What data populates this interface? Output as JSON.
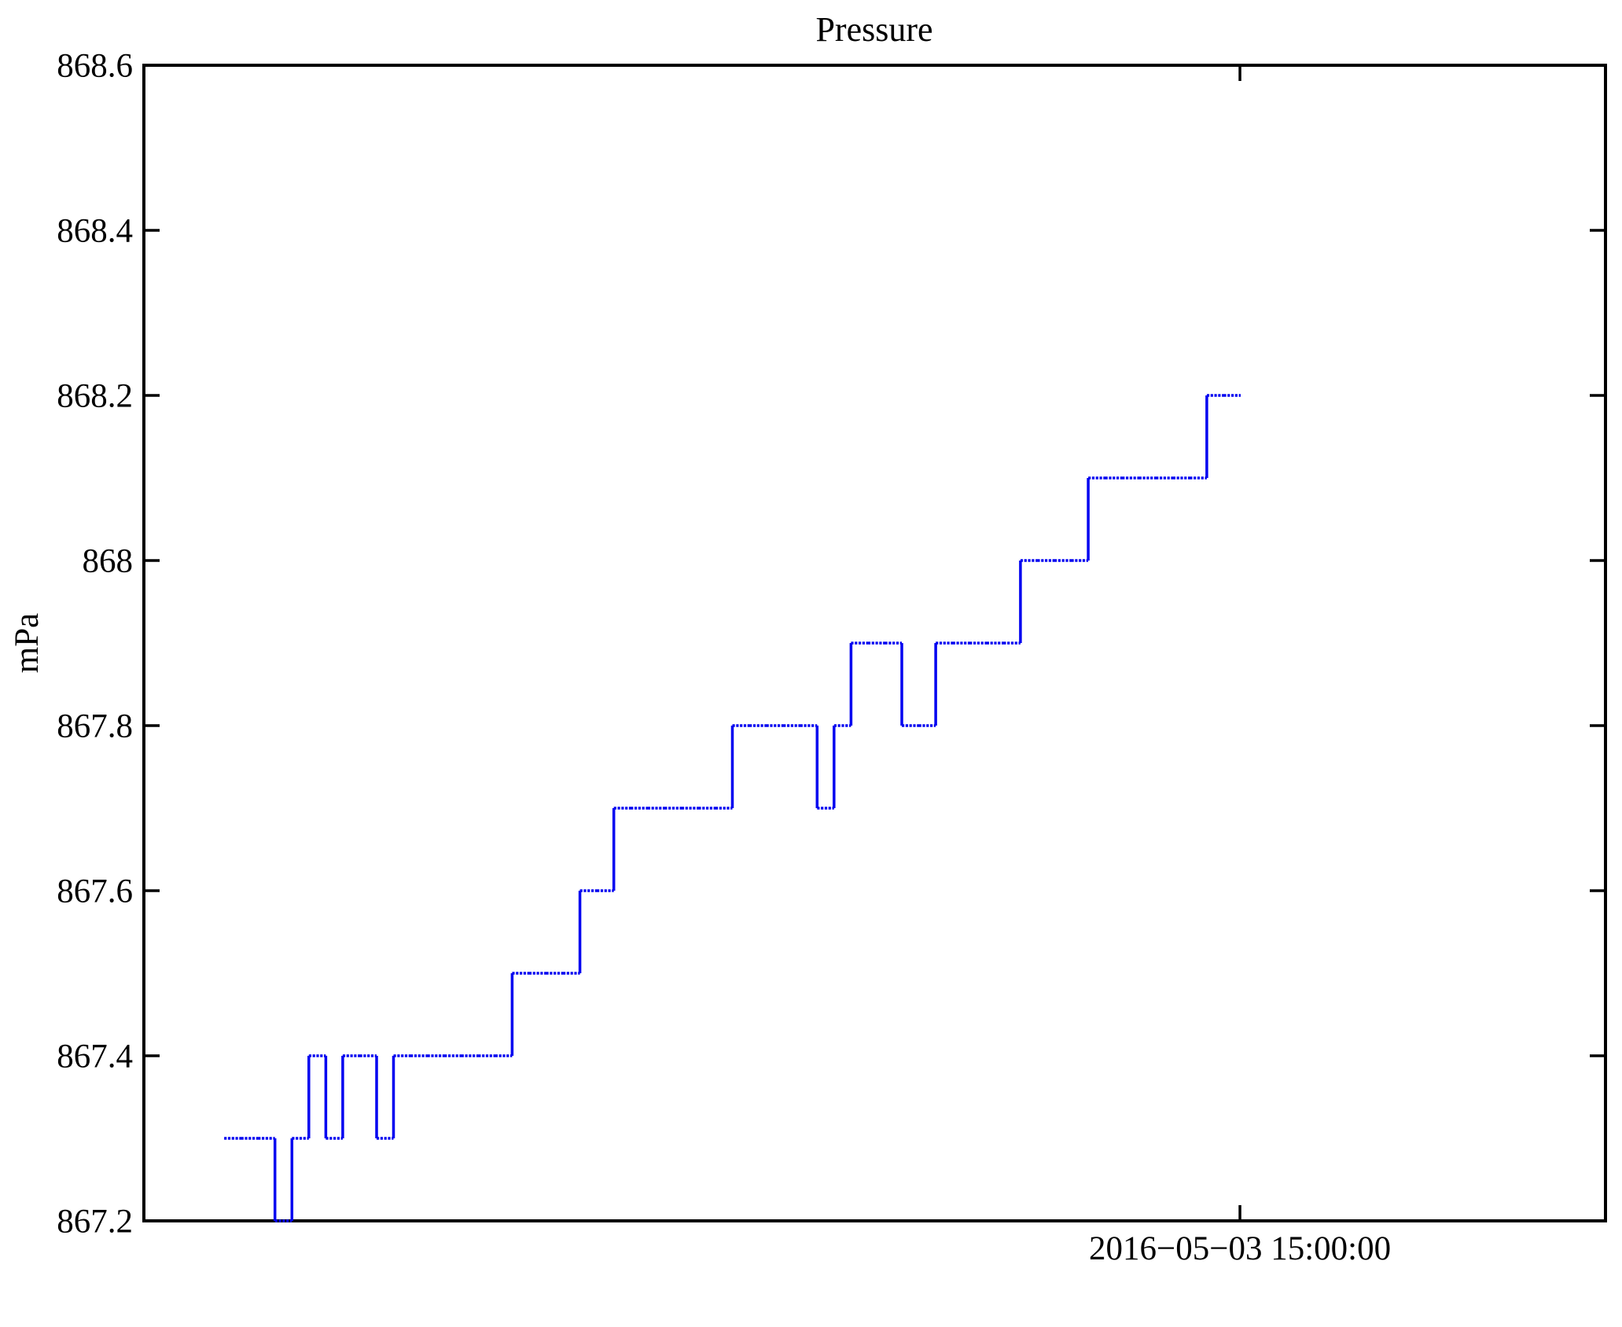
{
  "figure": {
    "background": "#ffffff",
    "frame_color": "#000000",
    "line_color": "#0000f0"
  },
  "chart_data": {
    "type": "line",
    "step": true,
    "title": "Pressure",
    "xlabel": "",
    "ylabel": "mPa",
    "ylim": [
      867.2,
      868.6
    ],
    "grid": false,
    "legend": "none",
    "yticks": {
      "values": [
        867.2,
        867.4,
        867.6,
        867.8,
        868.0,
        868.2,
        868.4,
        868.6
      ],
      "labels": [
        "867.2",
        "867.4",
        "867.6",
        "867.8",
        "868",
        "868.2",
        "868.4",
        "868.6"
      ]
    },
    "xticks": [
      {
        "label": "2016−05−03 15:00:00",
        "frac": 0.7499
      }
    ],
    "series": [
      {
        "name": "Pressure",
        "x_unit": "samples at 1-minute spacing, last sample at ticked time",
        "x_start_frac": 0.0549,
        "x_end_frac": 0.7504,
        "values": [
          867.3,
          867.3,
          867.3,
          867.2,
          867.3,
          867.4,
          867.3,
          867.4,
          867.4,
          867.3,
          867.4,
          867.4,
          867.4,
          867.4,
          867.4,
          867.4,
          867.4,
          867.5,
          867.5,
          867.5,
          867.5,
          867.6,
          867.6,
          867.7,
          867.7,
          867.7,
          867.7,
          867.7,
          867.7,
          867.7,
          867.8,
          867.8,
          867.8,
          867.8,
          867.8,
          867.7,
          867.8,
          867.9,
          867.9,
          867.9,
          867.8,
          867.8,
          867.9,
          867.9,
          867.9,
          867.9,
          867.9,
          868.0,
          868.0,
          868.0,
          868.0,
          868.1,
          868.1,
          868.1,
          868.1,
          868.1,
          868.1,
          868.1,
          868.2,
          868.2,
          868.2
        ]
      }
    ]
  }
}
